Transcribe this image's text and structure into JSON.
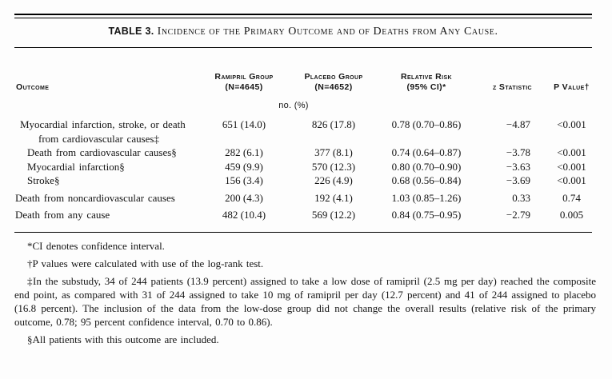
{
  "table": {
    "title": {
      "label": "Table 3.",
      "text": "Incidence of the Primary Outcome and of Deaths from Any Cause."
    },
    "header": {
      "outcome": "Outcome",
      "ramipril_group": {
        "line1": "Ramipril Group",
        "line2": "(N=4645)"
      },
      "placebo_group": {
        "line1": "Placebo Group",
        "line2": "(N=4652)"
      },
      "relative_risk": {
        "line1": "Relative Risk",
        "line2": "(95% CI)*"
      },
      "z_statistic": "z Statistic",
      "p_value": "P Value†"
    },
    "unit_note": "no. (%)",
    "rows": [
      {
        "outcome": "Myocardial infarction, stroke, or death\nfrom cardiovascular causes‡",
        "ramipril": "651 (14.0)",
        "placebo": "826 (17.8)",
        "relative_risk": "0.78 (0.70–0.86)",
        "z": "−4.87",
        "p": "<0.001"
      },
      {
        "outcome": "Death from cardiovascular causes§",
        "ramipril": "282 (6.1)",
        "placebo": "377 (8.1)",
        "relative_risk": "0.74 (0.64–0.87)",
        "z": "−3.78",
        "p": "<0.001"
      },
      {
        "outcome": "Myocardial infarction§",
        "ramipril": "459 (9.9)",
        "placebo": "570 (12.3)",
        "relative_risk": "0.80 (0.70–0.90)",
        "z": "−3.63",
        "p": "<0.001"
      },
      {
        "outcome": "Stroke§",
        "ramipril": "156 (3.4)",
        "placebo": "226 (4.9)",
        "relative_risk": "0.68 (0.56–0.84)",
        "z": "−3.69",
        "p": "<0.001"
      },
      {
        "outcome": "Death from noncardiovascular causes",
        "ramipril": "200 (4.3)",
        "placebo": "192 (4.1)",
        "relative_risk": "1.03 (0.85–1.26)",
        "z": "0.33",
        "p": "0.74"
      },
      {
        "outcome": "Death from any cause",
        "ramipril": "482 (10.4)",
        "placebo": "569 (12.2)",
        "relative_risk": "0.84 (0.75–0.95)",
        "z": "−2.79",
        "p": "0.005"
      }
    ],
    "footnotes": [
      "*CI denotes confidence interval.",
      "†P values were calculated with use of the log-rank test.",
      "‡In the substudy, 34 of 244 patients (13.9 percent) assigned to take a low dose of ramipril (2.5 mg per day) reached the composite end point, as compared with 31 of 244 assigned to take 10 mg of ramipril per day (12.7 percent) and 41 of 244 assigned to placebo (16.8 percent). The inclusion of the data from the low-dose group did not change the overall results (relative risk of the primary outcome, 0.78; 95 percent confidence interval, 0.70 to 0.86).",
      "§All patients with this outcome are included."
    ],
    "colors": {
      "background": "#fdfdfd",
      "text": "#141414",
      "rule": "#000000"
    }
  }
}
